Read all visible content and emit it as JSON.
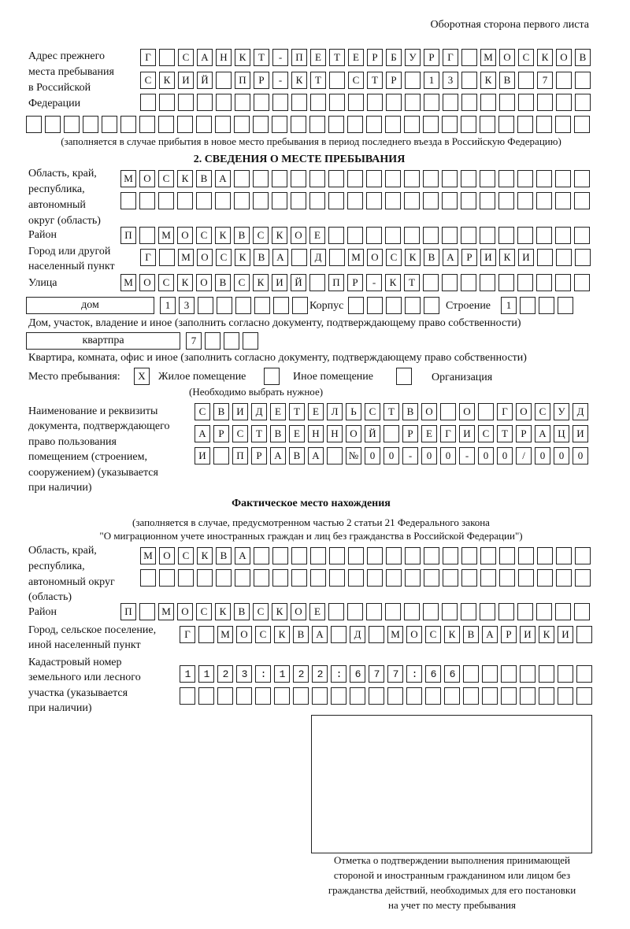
{
  "page_header": "Оборотная сторона первого листа",
  "prev_address": {
    "label": [
      "Адрес прежнего",
      "места пребывания",
      "в Российской",
      "Федерации"
    ],
    "rows": [
      "Г САНКТ-ПЕТЕРБУРГ МОСКОВ",
      "СКИЙ ПР-КТ СТР 13 КВ 7  ",
      "",
      ""
    ],
    "note": "(заполняется в случае прибытия в новое место пребывания в период последнего въезда в Российскую Федерацию)"
  },
  "section2": {
    "heading": "2. СВЕДЕНИЯ О МЕСТЕ ПРЕБЫВАНИЯ",
    "region_label": [
      "Область, край,",
      "республика,",
      "автономный",
      "округ (область)"
    ],
    "region_rows": [
      "МОСКВА",
      ""
    ],
    "district_label": "Район",
    "district": "П МОСКВСКОЕ",
    "city_label": [
      "Город или другой",
      "населенный пункт"
    ],
    "city": "Г МОСКВА Д МОСКВАРИКИ",
    "street_label": "Улица",
    "street": "МОСКОВСКИЙ ПР-КТ",
    "house_type": "дом",
    "house": "13",
    "korpus_label": "Корпус",
    "korpus": "",
    "building_label": "Строение",
    "building": "1",
    "house_note": "Дом, участок, владение и иное (заполнить согласно документу, подтверждающему право собственности)",
    "apt_type": "квартпра",
    "apt": "7",
    "apt_note": "Квартира, комната, офис и иное (заполнить согласно документу, подтверждающему право собственности)",
    "stay_label": "Место пребывания:",
    "stay_options": [
      {
        "label": "Жилое помещение",
        "mark": "X"
      },
      {
        "label": "Иное помещение",
        "mark": ""
      },
      {
        "label": "Организация",
        "mark": ""
      }
    ],
    "stay_hint": "(Необходимо выбрать нужное)",
    "doc_label": [
      "Наименование и реквизиты",
      "документа, подтверждающего",
      "право пользования",
      "помещением (строением,",
      "сооружением) (указывается",
      "при наличии)"
    ],
    "doc_rows": [
      "СВИДЕТЕЛЬСТВО О ГОСУД",
      "АРСТВЕННОЙ РЕГИСТРАЦИ",
      "И ПРАВА №00-00-00/000"
    ]
  },
  "actual": {
    "heading": "Фактическое место нахождения",
    "note1": "(заполняется в случае, предусмотренном частью 2 статьи 21 Федерального закона",
    "note2": "\"О миграционном учете иностранных граждан и лиц без гражданства в Российской Федерации\")",
    "region_label": [
      "Область, край,",
      "республика,",
      "автономный округ",
      "(область)"
    ],
    "region_rows": [
      "МОСКВА",
      ""
    ],
    "district_label": "Район",
    "district": "П МОСКВСКОЕ",
    "city_label": [
      "Город, сельское поселение,",
      "иной населенный пункт"
    ],
    "city": "Г МОСКВА Д МОСКВАРИКИ",
    "cadastre_label": [
      "Кадастровый номер",
      "земельного или лесного",
      "участка (указывается",
      "при наличии)"
    ],
    "cadastre_rows": [
      "1123:122:677:66",
      ""
    ]
  },
  "stamp_caption": [
    "Отметка о подтверждении выполнения принимающей",
    "стороной и иностранным гражданином или лицом без",
    "гражданства действий, необходимых для его постановки",
    "на учет по месту пребывания"
  ]
}
